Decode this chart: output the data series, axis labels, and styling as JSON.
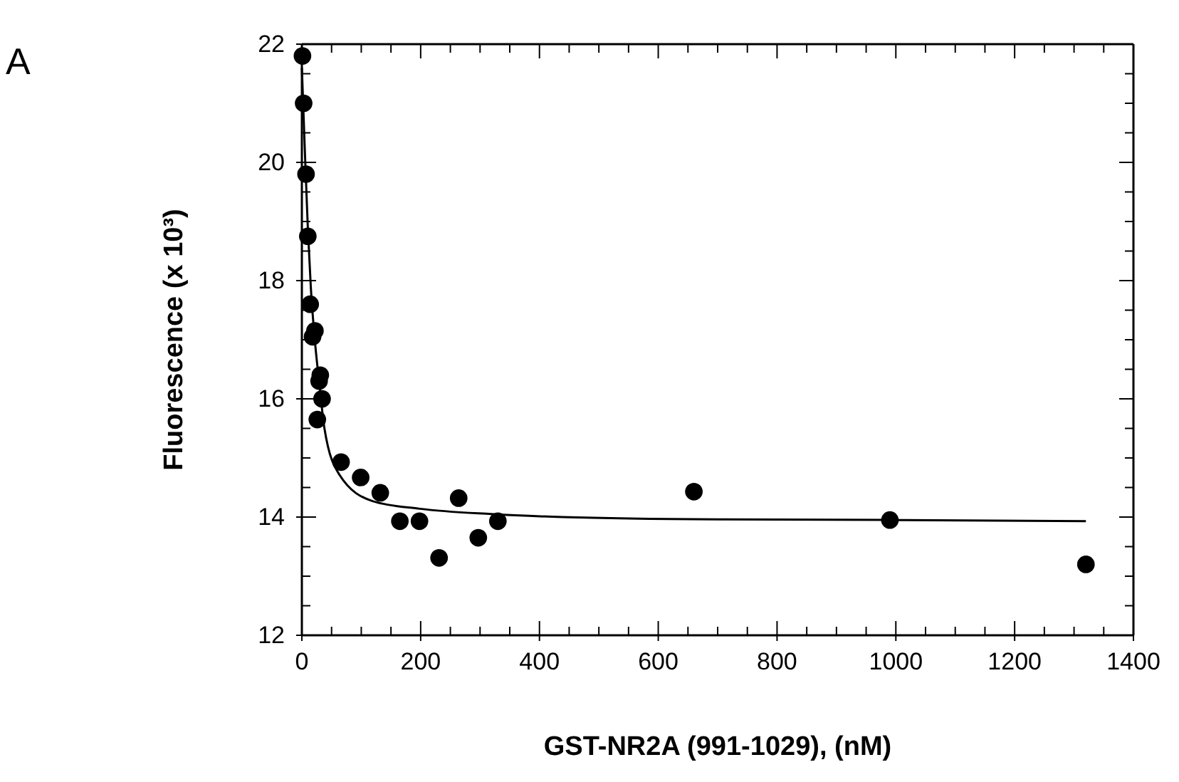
{
  "chart_data": {
    "type": "scatter",
    "xlabel": "GST-NR2A (991-1029), (nM)",
    "ylabel": "Fluorescence (x 10³)",
    "annotations": [
      "A"
    ],
    "series": [
      {
        "color": "#000000",
        "marker": "circle",
        "x": [
          1,
          3,
          7,
          10,
          14,
          18,
          22,
          26,
          29,
          31,
          34,
          66,
          99,
          132,
          165,
          198,
          231,
          264,
          297,
          330,
          660,
          990,
          1320
        ],
        "values": [
          21.8,
          21.0,
          19.8,
          18.75,
          17.6,
          17.05,
          17.15,
          15.65,
          16.3,
          16.4,
          16.0,
          14.93,
          14.67,
          14.41,
          13.93,
          13.93,
          13.31,
          14.32,
          13.65,
          13.93,
          14.43,
          13.95,
          13.2
        ]
      },
      {
        "type": "line",
        "color": "#000000",
        "marker": "none",
        "x": [
          0,
          5,
          10,
          15,
          20,
          30,
          38,
          63,
          119,
          199,
          319,
          439,
          700,
          1000,
          1320
        ],
        "values": [
          21.6,
          20.2,
          18.9,
          17.9,
          17.2,
          16.2,
          15.5,
          14.72,
          14.27,
          14.14,
          14.05,
          14.0,
          13.96,
          13.95,
          13.93
        ]
      }
    ],
    "xlim": [
      0,
      1400
    ],
    "xticks": [
      0,
      {
        "value": 50,
        "label": null
      },
      {
        "value": 100,
        "label": null
      },
      {
        "value": 150,
        "label": null
      },
      200,
      {
        "value": 250,
        "label": null
      },
      {
        "value": 300,
        "label": null
      },
      {
        "value": 350,
        "label": null
      },
      400,
      {
        "value": 450,
        "label": null
      },
      {
        "value": 500,
        "label": null
      },
      {
        "value": 550,
        "label": null
      },
      600,
      {
        "value": 650,
        "label": null
      },
      {
        "value": 700,
        "label": null
      },
      {
        "value": 750,
        "label": null
      },
      800,
      {
        "value": 850,
        "label": null
      },
      {
        "value": 900,
        "label": null
      },
      {
        "value": 950,
        "label": null
      },
      1000,
      {
        "value": 1050,
        "label": null
      },
      {
        "value": 1100,
        "label": null
      },
      {
        "value": 1150,
        "label": null
      },
      1200,
      {
        "value": 1250,
        "label": null
      },
      {
        "value": 1300,
        "label": null
      },
      {
        "value": 1350,
        "label": null
      },
      1400
    ],
    "ylim": [
      12,
      22
    ],
    "yticks": [
      12,
      {
        "value": 12.5,
        "label": null
      },
      {
        "value": 13,
        "label": null
      },
      {
        "value": 13.5,
        "label": null
      },
      14,
      {
        "value": 14.5,
        "label": null
      },
      {
        "value": 15,
        "label": null
      },
      {
        "value": 15.5,
        "label": null
      },
      16,
      {
        "value": 16.5,
        "label": null
      },
      {
        "value": 17,
        "label": null
      },
      {
        "value": 17.5,
        "label": null
      },
      18,
      {
        "value": 18.5,
        "label": null
      },
      {
        "value": 19,
        "label": null
      },
      {
        "value": 19.5,
        "label": null
      },
      20,
      {
        "value": 20.5,
        "label": null
      },
      {
        "value": 21,
        "label": null
      },
      {
        "value": 21.5,
        "label": null
      },
      22
    ],
    "grid": false
  }
}
